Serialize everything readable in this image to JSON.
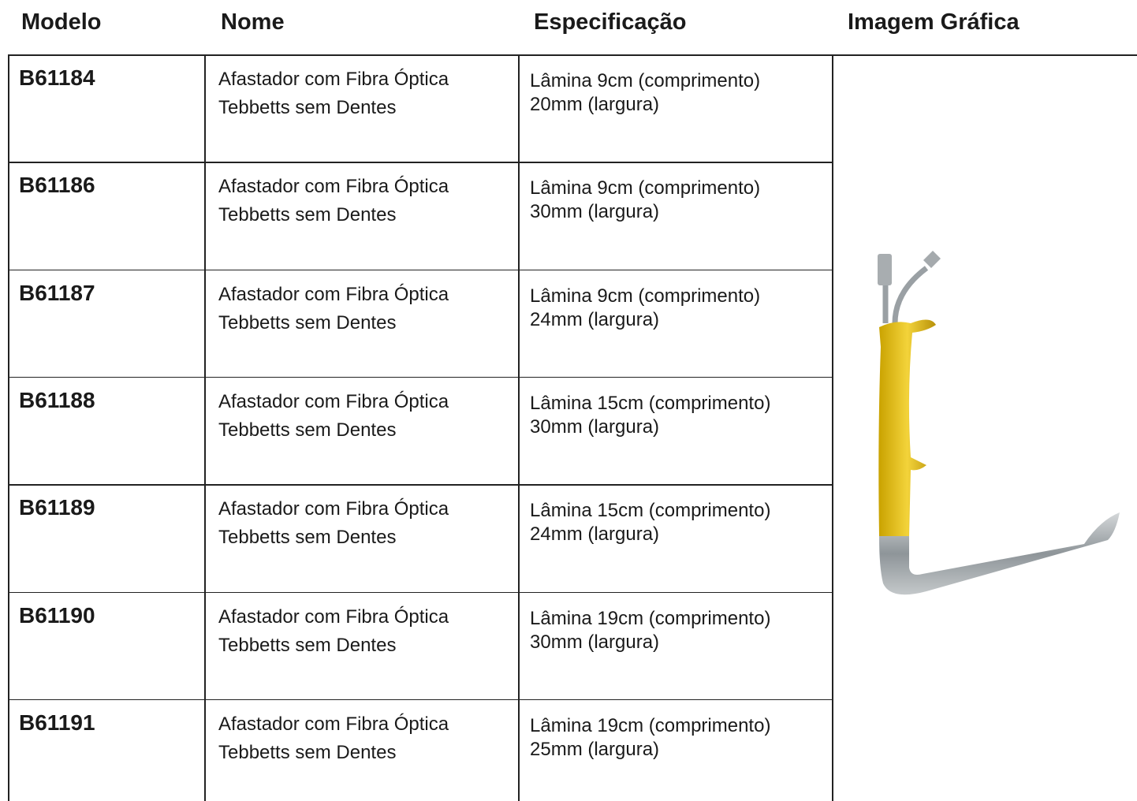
{
  "header": {
    "columns": [
      "Modelo",
      "Nome",
      "Especificação",
      "Imagem Gráfica"
    ]
  },
  "table": {
    "rows": [
      {
        "model": "B61184",
        "name": [
          "Afastador com Fibra Óptica",
          "Tebbetts sem Dentes"
        ],
        "spec": [
          "Lâmina 9cm (comprimento)",
          "20mm (largura)"
        ]
      },
      {
        "model": "B61186",
        "name": [
          "Afastador com Fibra Óptica",
          "Tebbetts sem Dentes"
        ],
        "spec": [
          "Lâmina 9cm (comprimento)",
          "30mm (largura)"
        ]
      },
      {
        "model": "B61187",
        "name": [
          "Afastador com Fibra Óptica",
          "Tebbetts sem Dentes"
        ],
        "spec": [
          "Lâmina 9cm (comprimento)",
          "24mm (largura)"
        ]
      },
      {
        "model": "B61188",
        "name": [
          "Afastador com Fibra Óptica",
          "Tebbetts sem Dentes"
        ],
        "spec": [
          "Lâmina 15cm (comprimento)",
          "30mm (largura)"
        ]
      },
      {
        "model": "B61189",
        "name": [
          "Afastador com Fibra Óptica",
          "Tebbetts sem Dentes"
        ],
        "spec": [
          "Lâmina 15cm (comprimento)",
          "24mm (largura)"
        ]
      },
      {
        "model": "B61190",
        "name": [
          "Afastador com Fibra Óptica",
          "Tebbetts sem Dentes"
        ],
        "spec": [
          "Lâmina 19cm (comprimento)",
          "30mm (largura)"
        ]
      },
      {
        "model": "B61191",
        "name": [
          "Afastador com Fibra Óptica",
          "Tebbetts sem Dentes"
        ],
        "spec": [
          "Lâmina 19cm (comprimento)",
          "25mm (largura)"
        ]
      }
    ]
  }
}
